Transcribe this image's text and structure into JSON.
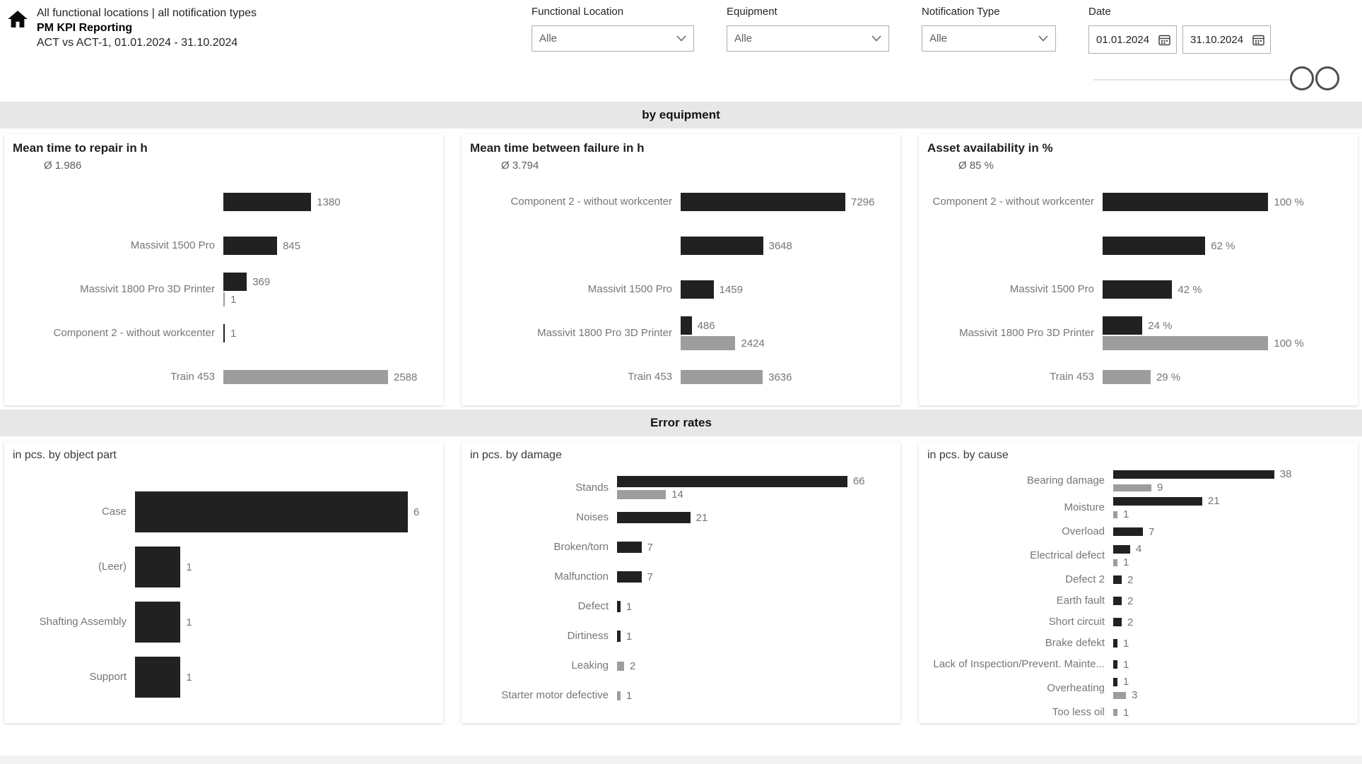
{
  "header": {
    "breadcrumb": "All functional locations | all notification types",
    "title": "PM KPI Reporting",
    "subtitle": "ACT vs ACT-1, 01.01.2024 - 31.10.2024"
  },
  "filters": {
    "functional_location": {
      "label": "Functional Location",
      "value": "Alle"
    },
    "equipment": {
      "label": "Equipment",
      "value": "Alle"
    },
    "notification_type": {
      "label": "Notification Type",
      "value": "Alle"
    },
    "date": {
      "label": "Date",
      "from": "01.01.2024",
      "to": "31.10.2024"
    }
  },
  "sections": {
    "equipment": "by equipment",
    "error_rates": "Error rates"
  },
  "colors": {
    "act": "#212121",
    "act_prev": "#9d9d9d",
    "value_label": "#767676",
    "band_bg": "#e7e7e7"
  },
  "chart_data": [
    {
      "type": "bar",
      "orientation": "horizontal",
      "title": "Mean time to repair in h",
      "average_label": "Ø 1.986",
      "series_names": [
        "ACT",
        "ACT-1"
      ],
      "xmax": 2588,
      "value_suffix": "",
      "rows": [
        {
          "category": "",
          "act": 1380
        },
        {
          "category": "Massivit 1500 Pro",
          "act": 845
        },
        {
          "category": "Massivit 1800 Pro 3D Printer",
          "act": 369,
          "prev": 1
        },
        {
          "category": "Component 2 - without workcenter",
          "act": 1
        },
        {
          "category": "Train 453",
          "prev": 2588
        }
      ]
    },
    {
      "type": "bar",
      "orientation": "horizontal",
      "title": "Mean time between failure in h",
      "average_label": "Ø 3.794",
      "series_names": [
        "ACT",
        "ACT-1"
      ],
      "xmax": 7296,
      "value_suffix": "",
      "rows": [
        {
          "category": "Component 2 - without workcenter",
          "act": 7296
        },
        {
          "category": "",
          "act": 3648
        },
        {
          "category": "Massivit 1500 Pro",
          "act": 1459
        },
        {
          "category": "Massivit 1800 Pro 3D Printer",
          "act": 486,
          "prev": 2424
        },
        {
          "category": "Train 453",
          "prev": 3636
        }
      ]
    },
    {
      "type": "bar",
      "orientation": "horizontal",
      "title": "Asset availability in %",
      "average_label": "Ø 85 %",
      "series_names": [
        "ACT",
        "ACT-1"
      ],
      "xmax": 100,
      "value_suffix": " %",
      "rows": [
        {
          "category": "Component 2 - without workcenter",
          "act": 100
        },
        {
          "category": "",
          "act": 62
        },
        {
          "category": "Massivit 1500 Pro",
          "act": 42
        },
        {
          "category": "Massivit 1800 Pro 3D Printer",
          "act": 24,
          "prev": 100
        },
        {
          "category": "Train 453",
          "prev": 29
        }
      ]
    },
    {
      "type": "bar",
      "orientation": "horizontal",
      "title": "in pcs. by object part",
      "series_names": [
        "ACT",
        "ACT-1"
      ],
      "xmax": 6,
      "value_suffix": "",
      "rows": [
        {
          "category": "Case",
          "act": 6
        },
        {
          "category": "(Leer)",
          "act": 1
        },
        {
          "category": "Shafting Assembly",
          "act": 1
        },
        {
          "category": "Support",
          "act": 1
        }
      ]
    },
    {
      "type": "bar",
      "orientation": "horizontal",
      "title": "in pcs. by damage",
      "series_names": [
        "ACT",
        "ACT-1"
      ],
      "xmax": 66,
      "value_suffix": "",
      "rows": [
        {
          "category": "Stands",
          "act": 66,
          "prev": 14
        },
        {
          "category": "Noises",
          "act": 21
        },
        {
          "category": "Broken/torn",
          "act": 7
        },
        {
          "category": "Malfunction",
          "act": 7
        },
        {
          "category": "Defect",
          "act": 1
        },
        {
          "category": "Dirtiness",
          "act": 1
        },
        {
          "category": "Leaking",
          "prev": 2
        },
        {
          "category": "Starter motor defective",
          "prev": 1
        }
      ]
    },
    {
      "type": "bar",
      "orientation": "horizontal",
      "title": "in pcs. by cause",
      "series_names": [
        "ACT",
        "ACT-1"
      ],
      "xmax": 38,
      "value_suffix": "",
      "rows": [
        {
          "category": "Bearing damage",
          "act": 38,
          "prev": 9
        },
        {
          "category": "Moisture",
          "act": 21,
          "prev": 1
        },
        {
          "category": "Overload",
          "act": 7
        },
        {
          "category": "Electrical defect",
          "act": 4,
          "prev": 1
        },
        {
          "category": "Defect 2",
          "act": 2
        },
        {
          "category": "Earth fault",
          "act": 2
        },
        {
          "category": "Short circuit",
          "act": 2
        },
        {
          "category": "Brake defekt",
          "act": 1
        },
        {
          "category": "Lack of Inspection/Prevent. Mainte...",
          "act": 1
        },
        {
          "category": "Overheating",
          "act": 1,
          "prev": 3
        },
        {
          "category": "Too less oil",
          "prev": 1
        }
      ]
    }
  ]
}
